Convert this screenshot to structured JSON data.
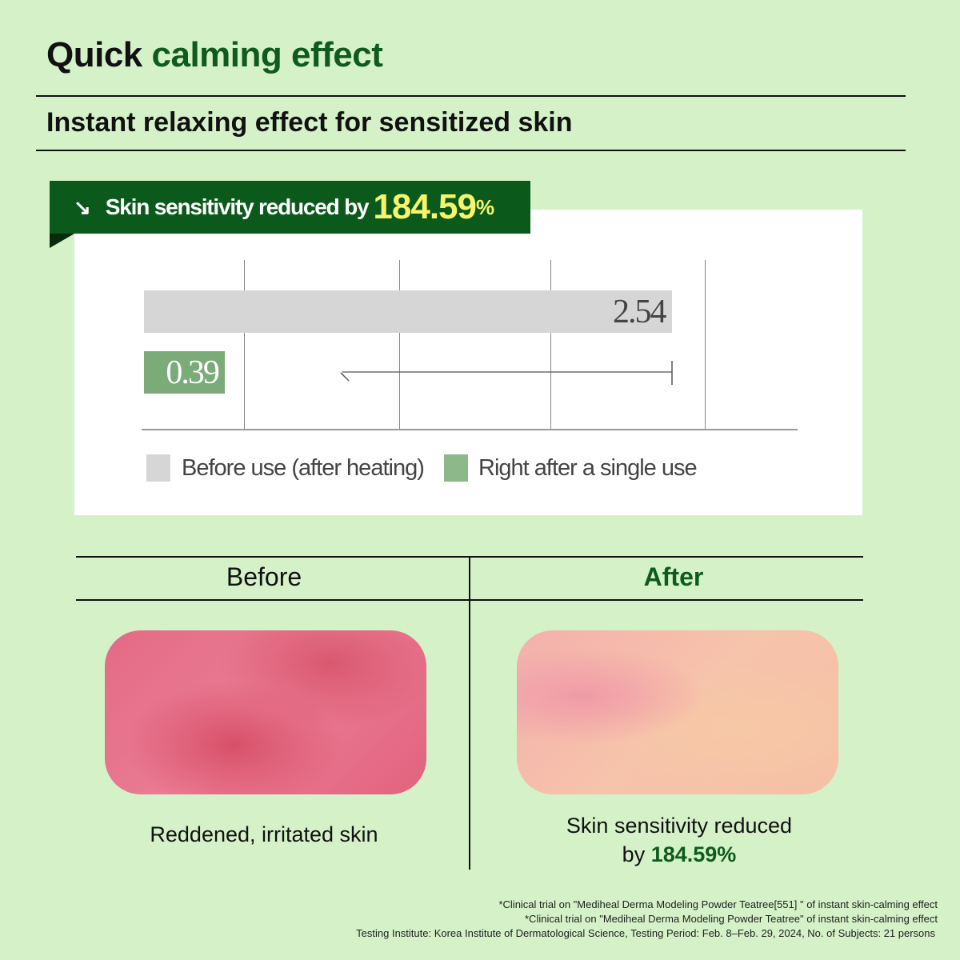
{
  "header": {
    "title_black": "Quick",
    "title_green": "calming effect",
    "subtitle": "Instant relaxing effect for sensitized skin"
  },
  "banner": {
    "icon": "arrow-down-right-icon",
    "text": "Skin sensitivity reduced by",
    "value": "184.59",
    "unit": "%"
  },
  "chart_data": {
    "type": "bar",
    "orientation": "horizontal",
    "categories": [
      "Before use (after heating)",
      "Right after a single use"
    ],
    "values": [
      2.54,
      0.39
    ],
    "labels": [
      "2.54",
      "0.39"
    ],
    "colors": [
      "#d6d6d6",
      "#7fae7d"
    ],
    "legend": [
      "Before use (after heating)",
      "Right after a single use"
    ],
    "legend_position": "bottom",
    "grid": true
  },
  "comparison": {
    "before": {
      "heading": "Before",
      "caption": "Reddened, irritated skin"
    },
    "after": {
      "heading": "After",
      "caption_line1": "Skin sensitivity reduced",
      "caption_prefix": "by",
      "caption_value": "184.59%"
    }
  },
  "footnotes": [
    "*Clinical trial on \"Mediheal Derma Modeling Powder Teatree[551] \" of instant skin-calming effect",
    "*Clinical trial on \"Mediheal Derma Modeling Powder Teatree\" of instant skin-calming effect",
    "Testing Institute: Korea Institute of Dermatological Science, Testing Period: Feb. 8–Feb. 29, 2024, No. of Subjects: 21 persons"
  ],
  "colors": {
    "background": "#d4f1c8",
    "brand_green": "#0b5a1c",
    "highlight": "#f6f56a"
  }
}
